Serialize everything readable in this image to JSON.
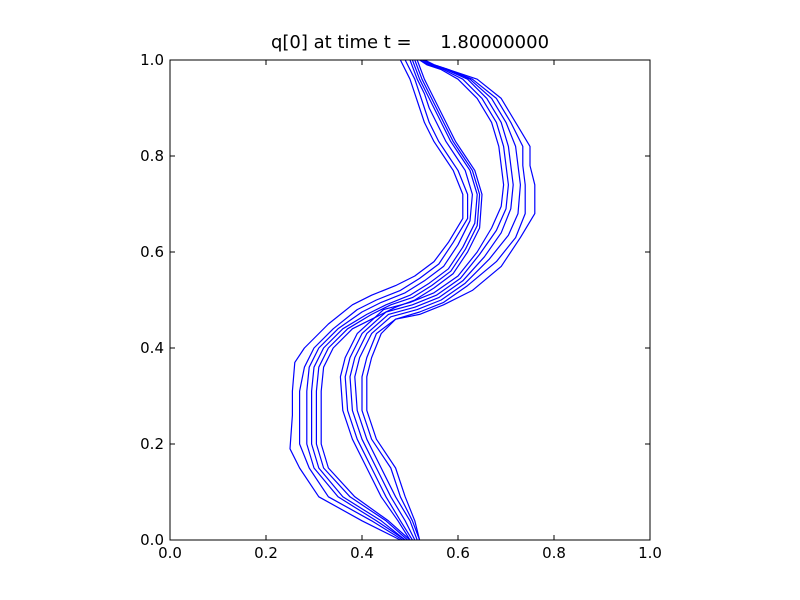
{
  "chart_data": {
    "type": "contour",
    "title": "q[0] at time t =     1.80000000",
    "xlabel": "",
    "ylabel": "",
    "xlim": [
      0.0,
      1.0
    ],
    "ylim": [
      0.0,
      1.0
    ],
    "grid": false,
    "line_color": "#0000ff",
    "xticks": [
      "0.0",
      "0.2",
      "0.4",
      "0.6",
      "0.8",
      "1.0"
    ],
    "yticks": [
      "0.0",
      "0.2",
      "0.4",
      "0.6",
      "0.8",
      "1.0"
    ],
    "series": [
      {
        "left": [
          [
            0.48,
            0.0
          ],
          [
            0.4,
            0.04
          ],
          [
            0.31,
            0.09
          ],
          [
            0.27,
            0.15
          ],
          [
            0.25,
            0.19
          ],
          [
            0.255,
            0.26
          ],
          [
            0.255,
            0.31
          ],
          [
            0.26,
            0.37
          ],
          [
            0.28,
            0.4
          ],
          [
            0.33,
            0.45
          ],
          [
            0.38,
            0.49
          ],
          [
            0.42,
            0.51
          ],
          [
            0.47,
            0.53
          ],
          [
            0.51,
            0.55
          ],
          [
            0.55,
            0.58
          ],
          [
            0.58,
            0.62
          ],
          [
            0.61,
            0.67
          ],
          [
            0.61,
            0.72
          ],
          [
            0.59,
            0.77
          ],
          [
            0.57,
            0.8
          ],
          [
            0.55,
            0.83
          ],
          [
            0.53,
            0.87
          ],
          [
            0.52,
            0.9
          ],
          [
            0.51,
            0.93
          ],
          [
            0.5,
            0.96
          ],
          [
            0.48,
            1.0
          ]
        ],
        "right": [
          [
            0.52,
            0.0
          ],
          [
            0.51,
            0.04
          ],
          [
            0.49,
            0.09
          ],
          [
            0.47,
            0.15
          ],
          [
            0.43,
            0.21
          ],
          [
            0.41,
            0.27
          ],
          [
            0.41,
            0.34
          ],
          [
            0.42,
            0.38
          ],
          [
            0.44,
            0.43
          ],
          [
            0.47,
            0.46
          ],
          [
            0.52,
            0.47
          ],
          [
            0.57,
            0.49
          ],
          [
            0.63,
            0.52
          ],
          [
            0.69,
            0.57
          ],
          [
            0.73,
            0.63
          ],
          [
            0.76,
            0.68
          ],
          [
            0.76,
            0.74
          ],
          [
            0.75,
            0.78
          ],
          [
            0.75,
            0.82
          ],
          [
            0.72,
            0.87
          ],
          [
            0.69,
            0.92
          ],
          [
            0.64,
            0.96
          ],
          [
            0.58,
            0.98
          ],
          [
            0.55,
            0.99
          ],
          [
            0.53,
            1.0
          ]
        ]
      },
      {
        "left": [
          [
            0.485,
            0.0
          ],
          [
            0.42,
            0.04
          ],
          [
            0.33,
            0.09
          ],
          [
            0.29,
            0.15
          ],
          [
            0.27,
            0.2
          ],
          [
            0.27,
            0.26
          ],
          [
            0.27,
            0.31
          ],
          [
            0.28,
            0.36
          ],
          [
            0.3,
            0.4
          ],
          [
            0.34,
            0.44
          ],
          [
            0.39,
            0.48
          ],
          [
            0.43,
            0.5
          ],
          [
            0.48,
            0.52
          ],
          [
            0.52,
            0.545
          ],
          [
            0.56,
            0.575
          ],
          [
            0.59,
            0.62
          ],
          [
            0.62,
            0.67
          ],
          [
            0.62,
            0.72
          ],
          [
            0.6,
            0.77
          ],
          [
            0.58,
            0.8
          ],
          [
            0.56,
            0.83
          ],
          [
            0.54,
            0.87
          ],
          [
            0.53,
            0.9
          ],
          [
            0.52,
            0.93
          ],
          [
            0.51,
            0.96
          ],
          [
            0.49,
            1.0
          ]
        ],
        "right": [
          [
            0.52,
            0.0
          ],
          [
            0.505,
            0.04
          ],
          [
            0.48,
            0.09
          ],
          [
            0.46,
            0.15
          ],
          [
            0.42,
            0.21
          ],
          [
            0.4,
            0.27
          ],
          [
            0.4,
            0.34
          ],
          [
            0.41,
            0.38
          ],
          [
            0.43,
            0.43
          ],
          [
            0.47,
            0.46
          ],
          [
            0.52,
            0.475
          ],
          [
            0.57,
            0.495
          ],
          [
            0.62,
            0.53
          ],
          [
            0.68,
            0.58
          ],
          [
            0.72,
            0.63
          ],
          [
            0.74,
            0.68
          ],
          [
            0.74,
            0.74
          ],
          [
            0.735,
            0.78
          ],
          [
            0.735,
            0.82
          ],
          [
            0.71,
            0.87
          ],
          [
            0.68,
            0.92
          ],
          [
            0.63,
            0.96
          ],
          [
            0.58,
            0.98
          ],
          [
            0.55,
            0.99
          ],
          [
            0.53,
            1.0
          ]
        ]
      },
      {
        "left": [
          [
            0.49,
            0.0
          ],
          [
            0.43,
            0.04
          ],
          [
            0.35,
            0.09
          ],
          [
            0.3,
            0.15
          ],
          [
            0.285,
            0.2
          ],
          [
            0.285,
            0.26
          ],
          [
            0.285,
            0.31
          ],
          [
            0.29,
            0.36
          ],
          [
            0.31,
            0.4
          ],
          [
            0.35,
            0.44
          ],
          [
            0.4,
            0.475
          ],
          [
            0.44,
            0.495
          ],
          [
            0.49,
            0.515
          ],
          [
            0.53,
            0.54
          ],
          [
            0.57,
            0.57
          ],
          [
            0.6,
            0.615
          ],
          [
            0.625,
            0.665
          ],
          [
            0.63,
            0.72
          ],
          [
            0.615,
            0.77
          ],
          [
            0.595,
            0.8
          ],
          [
            0.575,
            0.83
          ],
          [
            0.555,
            0.87
          ],
          [
            0.54,
            0.9
          ],
          [
            0.53,
            0.93
          ],
          [
            0.515,
            0.96
          ],
          [
            0.5,
            1.0
          ]
        ],
        "right": [
          [
            0.515,
            0.0
          ],
          [
            0.5,
            0.04
          ],
          [
            0.47,
            0.09
          ],
          [
            0.44,
            0.15
          ],
          [
            0.41,
            0.21
          ],
          [
            0.39,
            0.27
          ],
          [
            0.385,
            0.34
          ],
          [
            0.395,
            0.38
          ],
          [
            0.42,
            0.43
          ],
          [
            0.46,
            0.465
          ],
          [
            0.515,
            0.48
          ],
          [
            0.565,
            0.5
          ],
          [
            0.615,
            0.535
          ],
          [
            0.665,
            0.585
          ],
          [
            0.705,
            0.635
          ],
          [
            0.725,
            0.68
          ],
          [
            0.73,
            0.74
          ],
          [
            0.725,
            0.78
          ],
          [
            0.72,
            0.82
          ],
          [
            0.7,
            0.87
          ],
          [
            0.67,
            0.92
          ],
          [
            0.625,
            0.96
          ],
          [
            0.58,
            0.98
          ],
          [
            0.55,
            0.99
          ],
          [
            0.53,
            1.0
          ]
        ]
      },
      {
        "left": [
          [
            0.49,
            0.0
          ],
          [
            0.44,
            0.04
          ],
          [
            0.36,
            0.09
          ],
          [
            0.31,
            0.15
          ],
          [
            0.295,
            0.2
          ],
          [
            0.295,
            0.26
          ],
          [
            0.295,
            0.31
          ],
          [
            0.3,
            0.36
          ],
          [
            0.32,
            0.4
          ],
          [
            0.36,
            0.44
          ],
          [
            0.41,
            0.47
          ],
          [
            0.45,
            0.49
          ],
          [
            0.5,
            0.51
          ],
          [
            0.54,
            0.535
          ],
          [
            0.58,
            0.565
          ],
          [
            0.61,
            0.61
          ],
          [
            0.635,
            0.66
          ],
          [
            0.64,
            0.72
          ],
          [
            0.625,
            0.77
          ],
          [
            0.605,
            0.8
          ],
          [
            0.585,
            0.83
          ],
          [
            0.565,
            0.87
          ],
          [
            0.55,
            0.9
          ],
          [
            0.535,
            0.93
          ],
          [
            0.52,
            0.96
          ],
          [
            0.505,
            1.0
          ]
        ],
        "right": [
          [
            0.51,
            0.0
          ],
          [
            0.49,
            0.04
          ],
          [
            0.46,
            0.09
          ],
          [
            0.43,
            0.15
          ],
          [
            0.4,
            0.21
          ],
          [
            0.38,
            0.27
          ],
          [
            0.375,
            0.34
          ],
          [
            0.385,
            0.38
          ],
          [
            0.41,
            0.43
          ],
          [
            0.455,
            0.47
          ],
          [
            0.51,
            0.485
          ],
          [
            0.56,
            0.505
          ],
          [
            0.61,
            0.54
          ],
          [
            0.655,
            0.59
          ],
          [
            0.69,
            0.64
          ],
          [
            0.71,
            0.69
          ],
          [
            0.715,
            0.74
          ],
          [
            0.71,
            0.78
          ],
          [
            0.705,
            0.82
          ],
          [
            0.69,
            0.87
          ],
          [
            0.66,
            0.92
          ],
          [
            0.62,
            0.96
          ],
          [
            0.575,
            0.98
          ],
          [
            0.545,
            0.99
          ],
          [
            0.525,
            1.0
          ]
        ]
      },
      {
        "left": [
          [
            0.495,
            0.0
          ],
          [
            0.45,
            0.04
          ],
          [
            0.375,
            0.09
          ],
          [
            0.32,
            0.15
          ],
          [
            0.305,
            0.2
          ],
          [
            0.305,
            0.26
          ],
          [
            0.305,
            0.31
          ],
          [
            0.31,
            0.36
          ],
          [
            0.33,
            0.4
          ],
          [
            0.37,
            0.44
          ],
          [
            0.42,
            0.47
          ],
          [
            0.46,
            0.49
          ],
          [
            0.505,
            0.505
          ],
          [
            0.545,
            0.53
          ],
          [
            0.585,
            0.56
          ],
          [
            0.615,
            0.605
          ],
          [
            0.64,
            0.655
          ],
          [
            0.645,
            0.72
          ],
          [
            0.63,
            0.77
          ],
          [
            0.61,
            0.8
          ],
          [
            0.59,
            0.83
          ],
          [
            0.57,
            0.87
          ],
          [
            0.555,
            0.9
          ],
          [
            0.54,
            0.93
          ],
          [
            0.525,
            0.96
          ],
          [
            0.51,
            1.0
          ]
        ],
        "right": [
          [
            0.505,
            0.0
          ],
          [
            0.48,
            0.04
          ],
          [
            0.45,
            0.09
          ],
          [
            0.42,
            0.15
          ],
          [
            0.39,
            0.21
          ],
          [
            0.37,
            0.27
          ],
          [
            0.365,
            0.34
          ],
          [
            0.375,
            0.38
          ],
          [
            0.4,
            0.43
          ],
          [
            0.45,
            0.475
          ],
          [
            0.505,
            0.49
          ],
          [
            0.555,
            0.51
          ],
          [
            0.605,
            0.545
          ],
          [
            0.645,
            0.595
          ],
          [
            0.68,
            0.645
          ],
          [
            0.7,
            0.69
          ],
          [
            0.705,
            0.74
          ],
          [
            0.7,
            0.78
          ],
          [
            0.695,
            0.82
          ],
          [
            0.68,
            0.87
          ],
          [
            0.65,
            0.92
          ],
          [
            0.61,
            0.96
          ],
          [
            0.57,
            0.98
          ],
          [
            0.54,
            0.99
          ],
          [
            0.52,
            1.0
          ]
        ]
      },
      {
        "left": [
          [
            0.5,
            0.0
          ],
          [
            0.455,
            0.04
          ],
          [
            0.385,
            0.09
          ],
          [
            0.33,
            0.15
          ],
          [
            0.315,
            0.2
          ],
          [
            0.315,
            0.26
          ],
          [
            0.315,
            0.31
          ],
          [
            0.32,
            0.36
          ],
          [
            0.34,
            0.4
          ],
          [
            0.38,
            0.44
          ],
          [
            0.43,
            0.465
          ],
          [
            0.47,
            0.485
          ],
          [
            0.51,
            0.5
          ],
          [
            0.55,
            0.525
          ],
          [
            0.59,
            0.555
          ],
          [
            0.62,
            0.6
          ],
          [
            0.645,
            0.65
          ],
          [
            0.65,
            0.72
          ],
          [
            0.635,
            0.77
          ],
          [
            0.615,
            0.8
          ],
          [
            0.595,
            0.83
          ],
          [
            0.575,
            0.87
          ],
          [
            0.56,
            0.9
          ],
          [
            0.545,
            0.93
          ],
          [
            0.53,
            0.96
          ],
          [
            0.515,
            1.0
          ]
        ],
        "right": [
          [
            0.5,
            0.0
          ],
          [
            0.475,
            0.04
          ],
          [
            0.44,
            0.09
          ],
          [
            0.41,
            0.15
          ],
          [
            0.38,
            0.21
          ],
          [
            0.36,
            0.27
          ],
          [
            0.355,
            0.34
          ],
          [
            0.365,
            0.38
          ],
          [
            0.39,
            0.43
          ],
          [
            0.445,
            0.48
          ],
          [
            0.5,
            0.495
          ],
          [
            0.55,
            0.515
          ],
          [
            0.6,
            0.55
          ],
          [
            0.64,
            0.6
          ],
          [
            0.67,
            0.65
          ],
          [
            0.69,
            0.695
          ],
          [
            0.695,
            0.74
          ],
          [
            0.69,
            0.78
          ],
          [
            0.685,
            0.82
          ],
          [
            0.67,
            0.87
          ],
          [
            0.64,
            0.92
          ],
          [
            0.6,
            0.96
          ],
          [
            0.565,
            0.98
          ],
          [
            0.535,
            0.99
          ],
          [
            0.52,
            1.0
          ]
        ]
      }
    ]
  }
}
